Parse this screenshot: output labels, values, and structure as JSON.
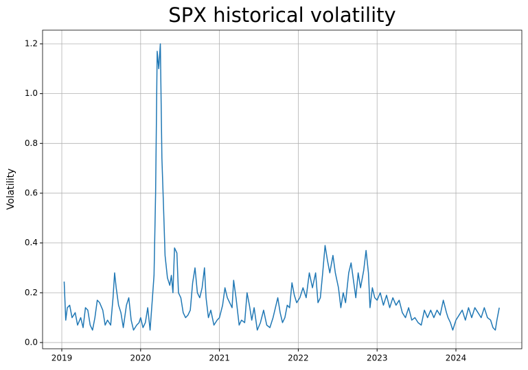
{
  "chart_data": {
    "type": "line",
    "title": "SPX historical volatility",
    "y_label": "Volatility",
    "x": [
      2019.03,
      2019.05,
      2019.07,
      2019.1,
      2019.13,
      2019.17,
      2019.2,
      2019.24,
      2019.27,
      2019.3,
      2019.33,
      2019.36,
      2019.39,
      2019.42,
      2019.45,
      2019.48,
      2019.52,
      2019.55,
      2019.58,
      2019.62,
      2019.65,
      2019.67,
      2019.69,
      2019.72,
      2019.75,
      2019.78,
      2019.82,
      2019.85,
      2019.88,
      2019.91,
      2019.95,
      2019.98,
      2020.0,
      2020.03,
      2020.06,
      2020.09,
      2020.12,
      2020.15,
      2020.17,
      2020.19,
      2020.21,
      2020.23,
      2020.25,
      2020.27,
      2020.29,
      2020.31,
      2020.34,
      2020.37,
      2020.39,
      2020.41,
      2020.43,
      2020.46,
      2020.48,
      2020.51,
      2020.54,
      2020.57,
      2020.6,
      2020.63,
      2020.66,
      2020.69,
      2020.72,
      2020.75,
      2020.78,
      2020.81,
      2020.83,
      2020.86,
      2020.89,
      2020.93,
      2020.97,
      2021.0,
      2021.04,
      2021.07,
      2021.1,
      2021.13,
      2021.16,
      2021.18,
      2021.21,
      2021.25,
      2021.28,
      2021.32,
      2021.35,
      2021.38,
      2021.41,
      2021.44,
      2021.48,
      2021.52,
      2021.56,
      2021.6,
      2021.64,
      2021.68,
      2021.71,
      2021.74,
      2021.77,
      2021.8,
      2021.83,
      2021.86,
      2021.89,
      2021.92,
      2021.95,
      2021.98,
      2022.02,
      2022.06,
      2022.1,
      2022.14,
      2022.18,
      2022.22,
      2022.25,
      2022.28,
      2022.31,
      2022.34,
      2022.37,
      2022.4,
      2022.44,
      2022.47,
      2022.51,
      2022.54,
      2022.57,
      2022.6,
      2022.64,
      2022.67,
      2022.7,
      2022.73,
      2022.76,
      2022.79,
      2022.83,
      2022.86,
      2022.89,
      2022.91,
      2022.94,
      2022.97,
      2023.0,
      2023.04,
      2023.08,
      2023.12,
      2023.16,
      2023.2,
      2023.24,
      2023.28,
      2023.32,
      2023.36,
      2023.4,
      2023.44,
      2023.48,
      2023.52,
      2023.56,
      2023.6,
      2023.64,
      2023.68,
      2023.72,
      2023.76,
      2023.8,
      2023.84,
      2023.88,
      2023.9,
      2023.93,
      2023.96,
      2024.0,
      2024.04,
      2024.08,
      2024.12,
      2024.16,
      2024.2,
      2024.24,
      2024.28,
      2024.32,
      2024.36,
      2024.4,
      2024.44,
      2024.47,
      2024.5,
      2024.52,
      2024.55
    ],
    "series": [
      {
        "color": "#1f77b4",
        "values": [
          0.245,
          0.09,
          0.14,
          0.15,
          0.1,
          0.12,
          0.07,
          0.1,
          0.06,
          0.14,
          0.13,
          0.07,
          0.05,
          0.1,
          0.17,
          0.16,
          0.13,
          0.07,
          0.09,
          0.07,
          0.18,
          0.28,
          0.22,
          0.15,
          0.12,
          0.06,
          0.15,
          0.18,
          0.09,
          0.05,
          0.07,
          0.08,
          0.1,
          0.06,
          0.08,
          0.14,
          0.05,
          0.18,
          0.27,
          0.6,
          1.17,
          1.1,
          1.2,
          0.74,
          0.55,
          0.35,
          0.26,
          0.23,
          0.27,
          0.2,
          0.38,
          0.36,
          0.2,
          0.18,
          0.12,
          0.1,
          0.11,
          0.13,
          0.24,
          0.3,
          0.2,
          0.18,
          0.22,
          0.3,
          0.18,
          0.1,
          0.13,
          0.07,
          0.09,
          0.1,
          0.15,
          0.22,
          0.18,
          0.16,
          0.14,
          0.25,
          0.18,
          0.07,
          0.09,
          0.08,
          0.2,
          0.15,
          0.09,
          0.14,
          0.05,
          0.08,
          0.13,
          0.07,
          0.06,
          0.1,
          0.14,
          0.18,
          0.12,
          0.08,
          0.1,
          0.15,
          0.14,
          0.24,
          0.19,
          0.16,
          0.18,
          0.22,
          0.18,
          0.28,
          0.22,
          0.28,
          0.16,
          0.18,
          0.28,
          0.39,
          0.33,
          0.28,
          0.35,
          0.28,
          0.22,
          0.14,
          0.2,
          0.16,
          0.28,
          0.32,
          0.25,
          0.18,
          0.28,
          0.22,
          0.29,
          0.37,
          0.28,
          0.14,
          0.22,
          0.18,
          0.17,
          0.2,
          0.15,
          0.19,
          0.14,
          0.18,
          0.15,
          0.17,
          0.12,
          0.1,
          0.14,
          0.09,
          0.1,
          0.08,
          0.07,
          0.13,
          0.1,
          0.13,
          0.1,
          0.13,
          0.11,
          0.17,
          0.12,
          0.1,
          0.08,
          0.05,
          0.09,
          0.11,
          0.13,
          0.09,
          0.14,
          0.1,
          0.14,
          0.12,
          0.1,
          0.14,
          0.1,
          0.09,
          0.06,
          0.05,
          0.09,
          0.14
        ]
      }
    ],
    "xlim": [
      2018.756,
      2024.836
    ],
    "xticks": [
      2019,
      2020,
      2021,
      2022,
      2023,
      2024
    ],
    "ylim": [
      -0.025,
      1.255
    ],
    "yticks": [
      {
        "value": 0,
        "label": "0.0"
      },
      0.2,
      0.4,
      0.6,
      0.8,
      {
        "value": 1,
        "label": "1.0"
      },
      1.2
    ],
    "grid": true
  }
}
